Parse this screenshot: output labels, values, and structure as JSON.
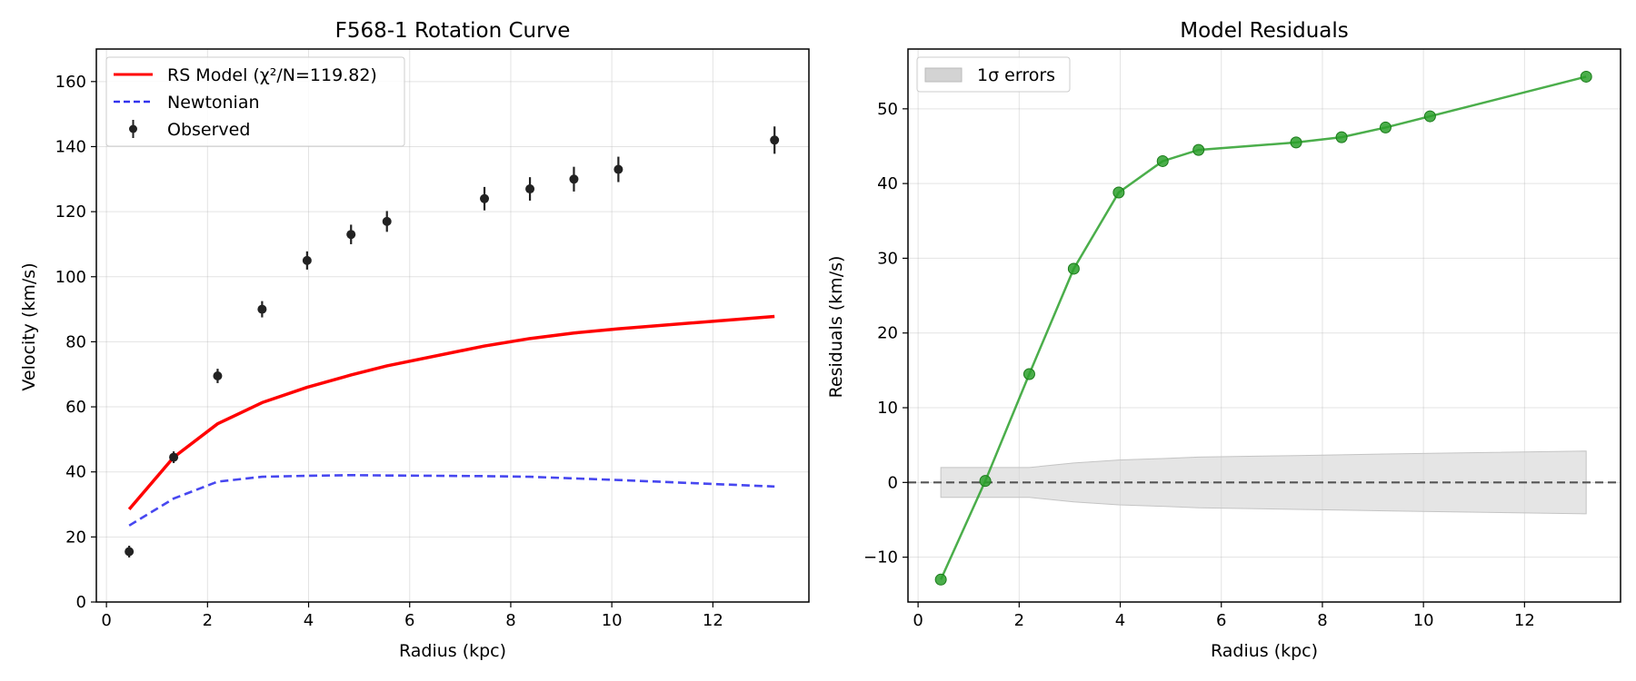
{
  "chart_data": [
    {
      "type": "line",
      "title": "F568-1 Rotation Curve",
      "xlabel": "Radius (kpc)",
      "ylabel": "Velocity (km/s)",
      "xlim": [
        -0.2,
        13.9
      ],
      "ylim": [
        0,
        170
      ],
      "xticks": [
        0,
        2,
        4,
        6,
        8,
        10,
        12
      ],
      "yticks": [
        0,
        20,
        40,
        60,
        80,
        100,
        120,
        140,
        160
      ],
      "grid": true,
      "legend_position": "top-left",
      "series": [
        {
          "name": "RS Model (χ²/N=119.82)",
          "kind": "line",
          "color": "#ff0000",
          "x": [
            0.45,
            1.33,
            2.2,
            3.08,
            3.97,
            4.84,
            5.55,
            7.48,
            8.38,
            9.25,
            10.13,
            13.22
          ],
          "y": [
            28.5,
            44.5,
            54.8,
            61.3,
            66.0,
            69.8,
            72.6,
            78.7,
            81.0,
            82.7,
            84.0,
            87.8
          ]
        },
        {
          "name": "Newtonian",
          "kind": "dashed-line",
          "color": "#3333ee",
          "x": [
            0.45,
            1.33,
            2.2,
            3.08,
            3.97,
            4.84,
            5.55,
            7.48,
            8.38,
            9.25,
            10.13,
            13.22
          ],
          "y": [
            23.5,
            31.8,
            37.0,
            38.5,
            38.8,
            39.0,
            38.9,
            38.7,
            38.5,
            38.0,
            37.5,
            35.5
          ]
        },
        {
          "name": "Observed",
          "kind": "errorbar",
          "color": "#222222",
          "x": [
            0.45,
            1.33,
            2.2,
            3.08,
            3.97,
            4.84,
            5.55,
            7.48,
            8.38,
            9.25,
            10.13,
            13.22
          ],
          "y": [
            15.5,
            44.5,
            69.5,
            90.0,
            105.0,
            113.0,
            117.0,
            124.0,
            127.0,
            130.0,
            133.0,
            142.0
          ],
          "err": [
            1.8,
            1.8,
            2.2,
            2.5,
            2.8,
            3.0,
            3.2,
            3.6,
            3.6,
            3.8,
            3.9,
            4.2
          ]
        }
      ]
    },
    {
      "type": "line",
      "title": "Model Residuals",
      "xlabel": "Radius (kpc)",
      "ylabel": "Residuals (km/s)",
      "xlim": [
        -0.2,
        13.9
      ],
      "ylim": [
        -16,
        58
      ],
      "xticks": [
        0,
        2,
        4,
        6,
        8,
        10,
        12
      ],
      "yticks": [
        -10,
        0,
        10,
        20,
        30,
        40,
        50
      ],
      "grid": true,
      "legend_position": "top-left",
      "reference_line": 0,
      "band": {
        "name": "1σ errors",
        "color": "#d3d3d3",
        "x": [
          0.45,
          1.33,
          2.2,
          3.08,
          3.97,
          4.84,
          5.55,
          7.48,
          8.38,
          9.25,
          10.13,
          13.22
        ],
        "err": [
          2.0,
          2.0,
          2.0,
          2.6,
          3.0,
          3.2,
          3.4,
          3.6,
          3.7,
          3.8,
          3.9,
          4.2
        ]
      },
      "series": [
        {
          "name": "",
          "kind": "line-markers",
          "color": "#2ca02c",
          "x": [
            0.45,
            1.33,
            2.2,
            3.08,
            3.97,
            4.84,
            5.55,
            7.48,
            8.38,
            9.25,
            10.13,
            13.22
          ],
          "y": [
            -13.0,
            0.2,
            14.5,
            28.6,
            38.8,
            43.0,
            44.5,
            45.5,
            46.2,
            47.5,
            49.0,
            54.3
          ]
        }
      ]
    }
  ]
}
